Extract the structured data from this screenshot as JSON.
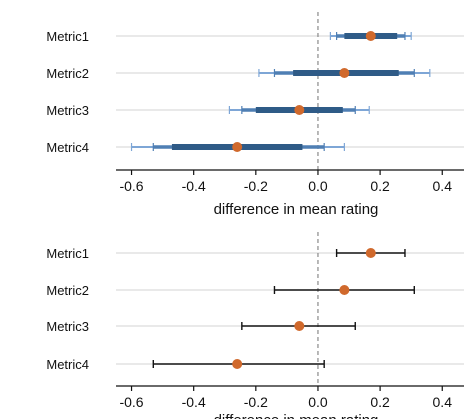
{
  "chart_data": [
    {
      "type": "interval",
      "categories": [
        "Metric1",
        "Metric2",
        "Metric3",
        "Metric4"
      ],
      "estimates": [
        0.17,
        0.085,
        -0.06,
        -0.26
      ],
      "intervals": [
        [
          [
            0.085,
            0.255
          ],
          [
            0.06,
            0.28
          ],
          [
            0.04,
            0.3
          ]
        ],
        [
          [
            -0.08,
            0.26
          ],
          [
            -0.14,
            0.31
          ],
          [
            -0.19,
            0.36
          ]
        ],
        [
          [
            -0.2,
            0.08
          ],
          [
            -0.245,
            0.12
          ],
          [
            -0.285,
            0.165
          ]
        ],
        [
          [
            -0.47,
            -0.05
          ],
          [
            -0.53,
            0.02
          ],
          [
            -0.6,
            0.085
          ]
        ]
      ],
      "xlim": [
        -0.65,
        0.47
      ],
      "xticks": [
        -0.6,
        -0.4,
        -0.2,
        0.0,
        0.2,
        0.4
      ],
      "tick_labels": [
        "-0.6",
        "-0.4",
        "-0.2",
        "0.0",
        "0.2",
        "0.4"
      ],
      "reference_line": 0,
      "xlabel": "difference in mean rating",
      "grid": "horizontal",
      "colors": {
        "interval_dark": "#2f5b87",
        "interval_mid": "#4f7fb4",
        "interval_light": "#7ea6d6",
        "point": "#d0692c",
        "grid": "#d3d3d3",
        "reference": "#8a8a8a"
      }
    },
    {
      "type": "errorbar",
      "categories": [
        "Metric1",
        "Metric2",
        "Metric3",
        "Metric4"
      ],
      "estimates": [
        0.17,
        0.085,
        -0.06,
        -0.26
      ],
      "intervals": [
        [
          0.06,
          0.28
        ],
        [
          -0.14,
          0.31
        ],
        [
          -0.245,
          0.12
        ],
        [
          -0.53,
          0.02
        ]
      ],
      "xlim": [
        -0.65,
        0.47
      ],
      "xticks": [
        -0.6,
        -0.4,
        -0.2,
        0.0,
        0.2,
        0.4
      ],
      "tick_labels": [
        "-0.6",
        "-0.4",
        "-0.2",
        "0.0",
        "0.2",
        "0.4"
      ],
      "reference_line": 0,
      "xlabel": "difference in mean rating",
      "grid": "horizontal",
      "colors": {
        "errorbar": "#111111",
        "point": "#d0692c",
        "grid": "#d3d3d3",
        "reference": "#8a8a8a"
      }
    }
  ]
}
